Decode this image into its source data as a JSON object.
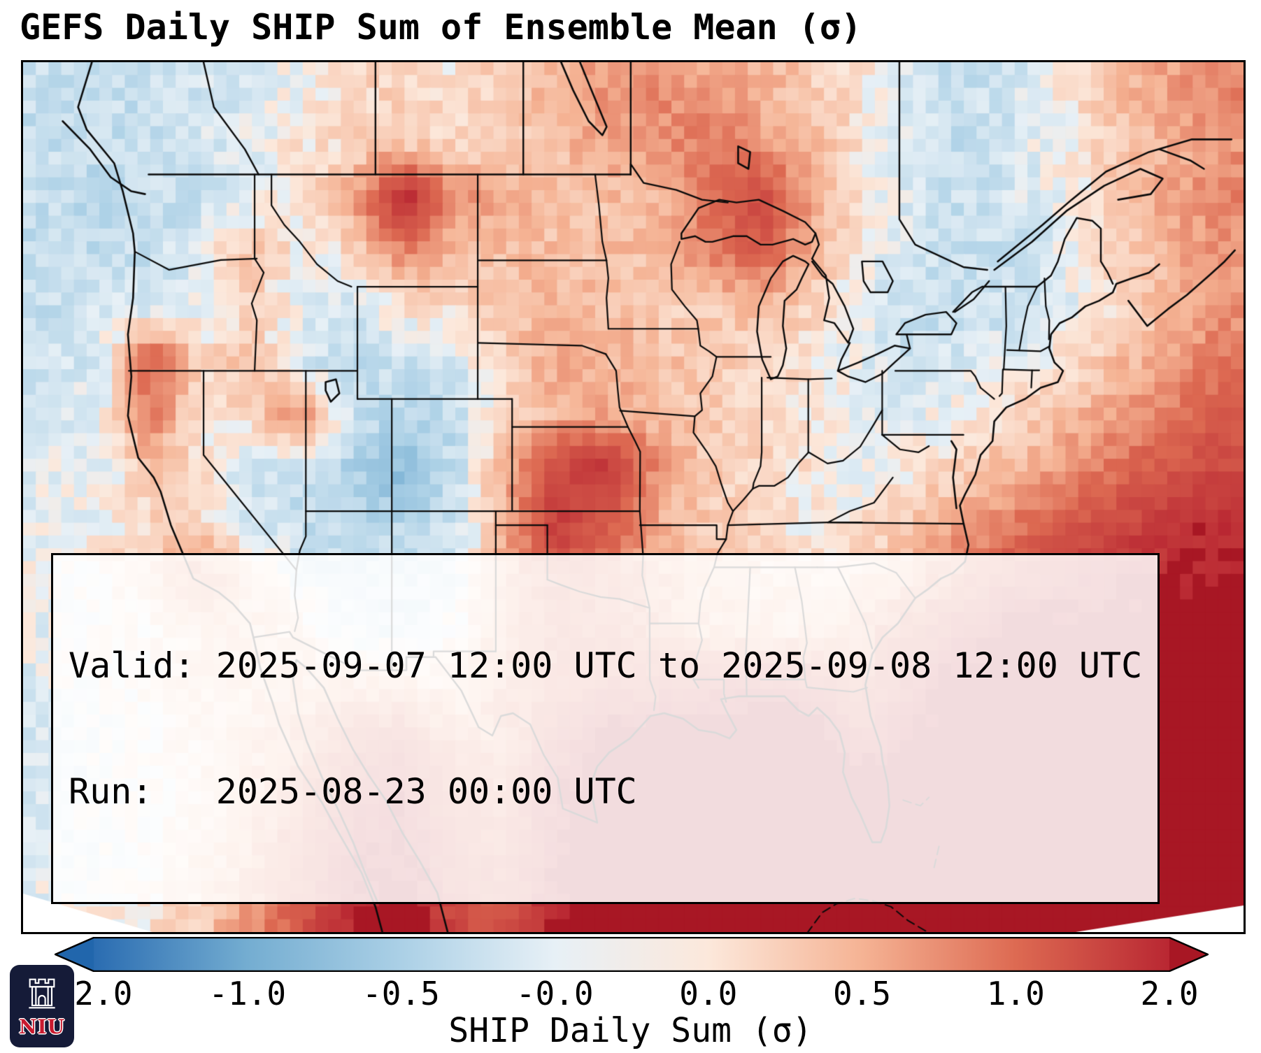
{
  "chart_data": {
    "type": "heatmap",
    "title": "GEFS Daily SHIP Sum of Ensemble Mean (σ)",
    "colorbar_label": "SHIP Daily Sum (σ)",
    "colorbar_ticks": [
      "-2.0",
      "-1.0",
      "-0.5",
      "-0.0",
      "0.0",
      "0.5",
      "1.0",
      "2.0"
    ],
    "colorbar_boundaries": [
      -2,
      -1,
      -0.5,
      -0.05,
      0.05,
      0.5,
      1,
      2
    ],
    "colorbar_anchor_colors": [
      "#2a6cb1",
      "#74add1",
      "#abd0e6",
      "#e7f0f6",
      "#fce8db",
      "#f5b394",
      "#dd6a52",
      "#b92732"
    ],
    "color_under": "#2166ac",
    "color_over": "#a81724",
    "legend_position": "bottom",
    "extent": {
      "lon_min": -130.5,
      "lon_max": -59.5,
      "lat_min": 22.0,
      "lat_max": 53.0
    },
    "grid": {
      "unit": "sigma",
      "order": "rows north to south",
      "lon_start": -129.0,
      "lon_step": 2.958,
      "lat_start": 52.0,
      "lat_step": -1.9375,
      "values": [
        [
          -0.3,
          -0.3,
          -0.3,
          -0.2,
          -0.2,
          0.0,
          0.2,
          0.2,
          0.1,
          0.3,
          0.5,
          0.7,
          0.8,
          0.6,
          0.5,
          0.3,
          0.1,
          -0.2,
          -0.3,
          -0.2,
          0.1,
          0.4,
          0.6,
          0.8
        ],
        [
          -0.3,
          -0.3,
          -0.3,
          -0.2,
          -0.1,
          0.1,
          0.2,
          0.3,
          0.2,
          0.3,
          0.4,
          0.6,
          0.7,
          0.9,
          0.7,
          0.4,
          0.1,
          -0.2,
          -0.3,
          -0.2,
          0.0,
          0.3,
          0.5,
          0.7
        ],
        [
          -0.3,
          -0.4,
          -0.3,
          -0.3,
          -0.1,
          0.1,
          0.6,
          2.0,
          0.8,
          0.5,
          0.4,
          0.4,
          0.5,
          1.0,
          1.5,
          0.6,
          0.1,
          -0.2,
          -0.3,
          -0.2,
          0.0,
          0.3,
          0.6,
          0.8
        ],
        [
          -0.3,
          -0.3,
          -0.3,
          -0.1,
          0.4,
          0.0,
          0.2,
          0.8,
          0.4,
          0.4,
          0.4,
          0.4,
          0.4,
          0.8,
          1.2,
          0.5,
          0.0,
          -0.2,
          -0.3,
          -0.3,
          -0.1,
          0.2,
          0.5,
          0.7
        ],
        [
          -0.3,
          -0.2,
          -0.2,
          -0.1,
          0.2,
          -0.1,
          -0.2,
          0.1,
          0.2,
          0.4,
          0.5,
          0.4,
          0.3,
          0.3,
          0.4,
          0.2,
          -0.1,
          -0.3,
          -0.3,
          -0.2,
          -0.1,
          0.2,
          0.4,
          0.7
        ],
        [
          -0.2,
          -0.2,
          1.2,
          0.2,
          0.4,
          -0.2,
          -0.3,
          -0.3,
          -0.2,
          0.3,
          0.5,
          0.5,
          0.4,
          0.3,
          0.2,
          0.1,
          -0.1,
          -0.2,
          -0.2,
          -0.1,
          0.1,
          0.4,
          0.6,
          0.9
        ],
        [
          -0.2,
          -0.1,
          0.9,
          0.1,
          0.2,
          0.8,
          -0.3,
          -0.4,
          -0.3,
          0.2,
          0.5,
          0.6,
          0.4,
          0.3,
          0.2,
          0.1,
          -0.1,
          -0.1,
          0.0,
          0.2,
          0.4,
          0.6,
          0.9,
          1.2
        ],
        [
          -0.1,
          -0.1,
          0.3,
          0.1,
          -0.2,
          -0.3,
          -0.5,
          -0.8,
          -0.3,
          0.5,
          1.5,
          1.8,
          0.7,
          0.3,
          0.2,
          0.1,
          -0.1,
          0.1,
          0.3,
          0.5,
          0.7,
          1.0,
          1.3,
          1.5
        ],
        [
          -0.1,
          0.0,
          0.2,
          0.2,
          -0.2,
          -0.3,
          -0.4,
          -0.4,
          -0.3,
          0.5,
          1.7,
          1.2,
          0.5,
          0.3,
          0.2,
          0.0,
          0.1,
          0.3,
          0.6,
          0.9,
          1.2,
          1.5,
          1.7,
          1.9
        ],
        [
          0.0,
          0.1,
          0.3,
          0.9,
          0.3,
          -0.2,
          -0.3,
          -0.3,
          -0.2,
          0.6,
          1.1,
          0.9,
          0.6,
          0.4,
          0.3,
          0.2,
          0.3,
          0.6,
          1.0,
          1.4,
          1.7,
          1.9,
          2.0,
          2.1
        ],
        [
          -0.1,
          0.0,
          0.1,
          0.3,
          0.4,
          0.2,
          -0.2,
          -0.2,
          0.0,
          0.7,
          1.1,
          1.0,
          0.8,
          0.5,
          0.4,
          0.4,
          0.7,
          1.2,
          1.8,
          2.2,
          2.3,
          2.3,
          2.3,
          2.3
        ],
        [
          -0.1,
          0.0,
          0.1,
          0.3,
          0.3,
          0.4,
          0.5,
          0.4,
          0.3,
          0.8,
          1.0,
          1.3,
          1.4,
          1.7,
          1.7,
          1.5,
          1.0,
          1.8,
          2.3,
          2.4,
          2.4,
          2.4,
          2.4,
          2.4
        ],
        [
          -0.2,
          -0.1,
          0.0,
          0.2,
          0.4,
          0.7,
          1.2,
          1.5,
          0.7,
          0.7,
          1.5,
          2.3,
          2.4,
          2.4,
          2.4,
          2.4,
          1.6,
          2.2,
          2.4,
          2.4,
          2.4,
          2.4,
          2.4,
          2.4
        ],
        [
          -0.2,
          -0.1,
          0.0,
          0.2,
          0.5,
          0.9,
          1.7,
          1.9,
          1.0,
          0.9,
          1.9,
          2.4,
          2.4,
          2.4,
          2.4,
          2.4,
          2.2,
          2.4,
          2.4,
          2.4,
          2.4,
          2.4,
          2.4,
          2.4
        ],
        [
          -0.1,
          -0.1,
          0.0,
          0.3,
          0.6,
          1.1,
          1.9,
          2.1,
          1.3,
          1.1,
          2.0,
          2.4,
          2.4,
          2.4,
          2.4,
          2.4,
          2.3,
          2.4,
          2.4,
          2.4,
          2.4,
          2.4,
          2.4,
          2.4
        ],
        [
          -0.1,
          0.0,
          0.1,
          0.3,
          0.7,
          1.3,
          2.0,
          2.2,
          1.5,
          1.3,
          2.1,
          2.4,
          2.4,
          2.4,
          2.4,
          2.4,
          2.4,
          2.4,
          2.4,
          2.4,
          2.4,
          2.4,
          2.4,
          2.4
        ]
      ]
    }
  },
  "info_box": {
    "valid_line": "Valid: 2025-09-07 12:00 UTC to 2025-09-08 12:00 UTC",
    "run_line": "Run:   2025-08-23 00:00 UTC"
  },
  "logo": {
    "text": "NIU"
  }
}
